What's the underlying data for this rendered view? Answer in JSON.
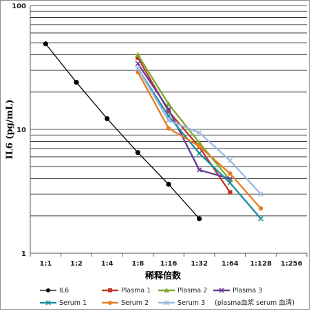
{
  "chart_data": {
    "type": "line",
    "xlabel": "稀释倍数",
    "ylabel": "IL6 (pg/mL)",
    "y_scale": "log",
    "ylim": [
      1,
      100
    ],
    "grid": {
      "horizontal": true,
      "vertical": false
    },
    "legend_placement": "bottom",
    "categories": [
      "1:1",
      "1:2",
      "1:4",
      "1:8",
      "1:16",
      "1:32",
      "1:64",
      "1:128",
      "1:256"
    ],
    "y_ticks": [
      {
        "value": 100,
        "label": "100"
      },
      {
        "value": 10,
        "label": "10"
      },
      {
        "value": 1,
        "label": "1"
      }
    ],
    "series": [
      {
        "name": "IL6",
        "color": "#000000",
        "marker": "circle",
        "points": [
          [
            "1:1",
            49
          ],
          [
            "1:2",
            24
          ],
          [
            "1:4",
            12.2
          ],
          [
            "1:8",
            6.5
          ],
          [
            "1:16",
            3.6
          ],
          [
            "1:32",
            1.9
          ]
        ]
      },
      {
        "name": "Plasma 1",
        "color": "#c0392b",
        "marker": "square",
        "points": [
          [
            "1:8",
            38
          ],
          [
            "1:16",
            14
          ],
          [
            "1:32",
            7.2
          ],
          [
            "1:64",
            3.1
          ]
        ]
      },
      {
        "name": "Plasma 2",
        "color": "#7bab2e",
        "marker": "triangle",
        "points": [
          [
            "1:8",
            40
          ],
          [
            "1:16",
            16
          ],
          [
            "1:32",
            7.8
          ],
          [
            "1:64",
            3.9
          ]
        ]
      },
      {
        "name": "Plasma 3",
        "color": "#6a3d9a",
        "marker": "x",
        "points": [
          [
            "1:8",
            34
          ],
          [
            "1:16",
            14.5
          ],
          [
            "1:32",
            4.7
          ],
          [
            "1:64",
            4.0
          ]
        ]
      },
      {
        "name": "Serum 1",
        "color": "#1a8fa0",
        "marker": "x",
        "points": [
          [
            "1:8",
            31
          ],
          [
            "1:16",
            12.8
          ],
          [
            "1:32",
            6.4
          ],
          [
            "1:64",
            3.7
          ],
          [
            "1:128",
            1.9
          ]
        ]
      },
      {
        "name": "Serum 2",
        "color": "#e67e22",
        "marker": "circle",
        "points": [
          [
            "1:8",
            29
          ],
          [
            "1:16",
            10.2
          ],
          [
            "1:32",
            7.3
          ],
          [
            "1:64",
            4.4
          ],
          [
            "1:128",
            2.3
          ]
        ]
      },
      {
        "name": "Serum 3",
        "color": "#9db9e0",
        "marker": "x",
        "points": [
          [
            "1:8",
            31
          ],
          [
            "1:16",
            11.8
          ],
          [
            "1:32",
            9.4
          ],
          [
            "1:64",
            5.6
          ],
          [
            "1:128",
            3.0
          ]
        ]
      }
    ],
    "legend_note": "(plasma血浆 serum 血清)"
  }
}
